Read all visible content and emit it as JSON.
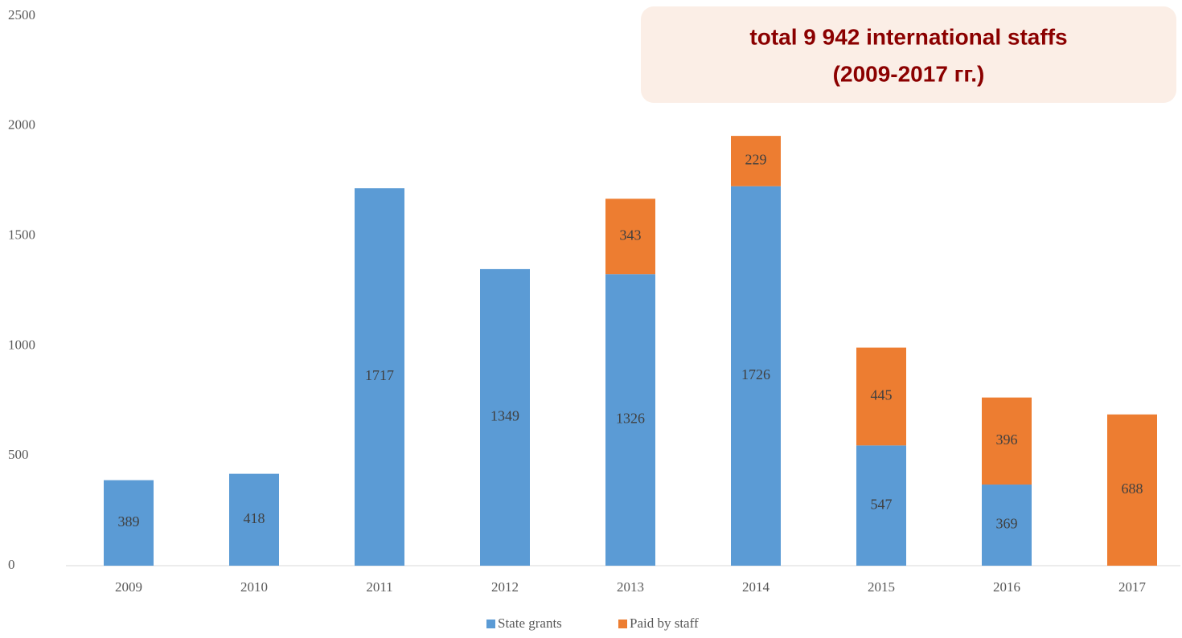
{
  "chart_data": {
    "type": "stacked_bar",
    "annotation": [
      "total 9 942 international staffs",
      "(2009-2017 гг.)"
    ],
    "categories": [
      "2009",
      "2010",
      "2011",
      "2012",
      "2013",
      "2014",
      "2015",
      "2016",
      "2017"
    ],
    "series": [
      {
        "name": "State grants",
        "color": "#5b9bd5",
        "values": [
          389,
          418,
          1717,
          1349,
          1326,
          1726,
          547,
          369,
          null
        ]
      },
      {
        "name": "Paid by staff",
        "color": "#ed7d31",
        "values": [
          null,
          null,
          null,
          null,
          343,
          229,
          445,
          396,
          688
        ]
      }
    ],
    "ylim": [
      0,
      2500
    ],
    "yticks": [
      0,
      500,
      1000,
      1500,
      2000,
      2500
    ],
    "grid": false,
    "legend": "bottom"
  }
}
